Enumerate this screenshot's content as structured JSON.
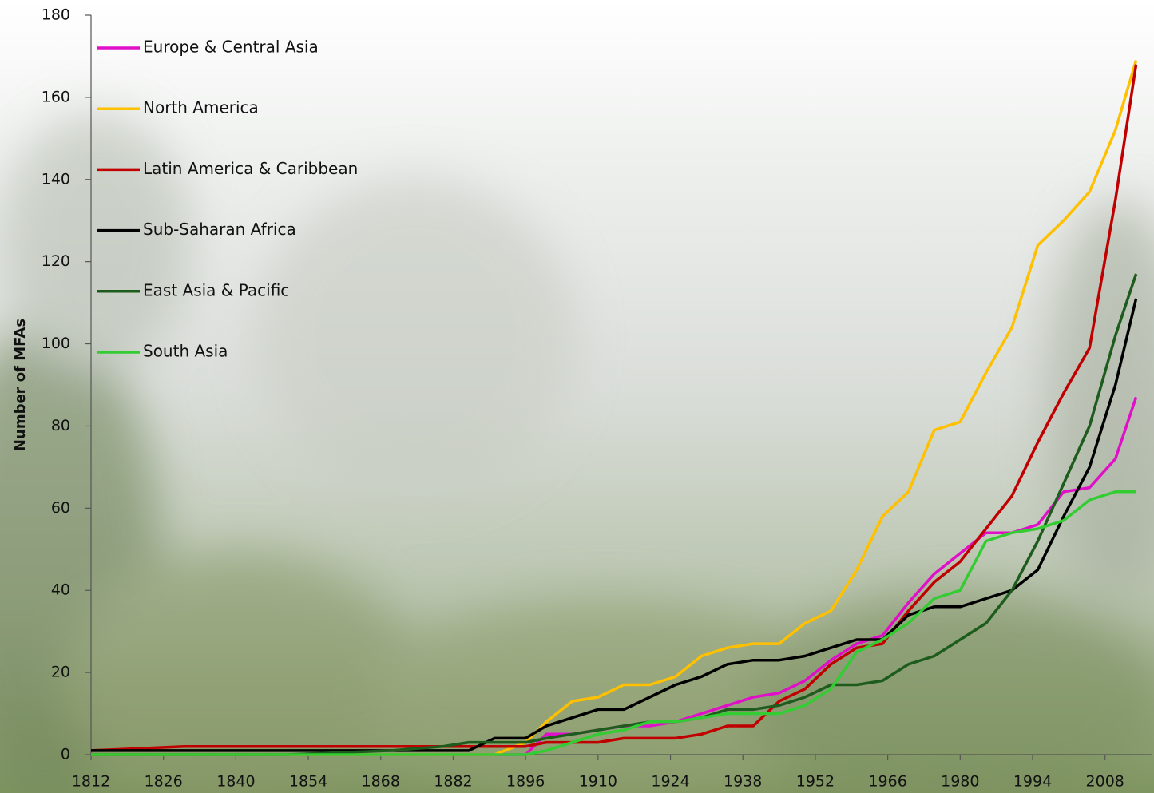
{
  "chart_data": {
    "type": "line",
    "y_label": "Number of MFAs",
    "x": [
      1812,
      1830,
      1850,
      1870,
      1880,
      1885,
      1890,
      1896,
      1900,
      1905,
      1910,
      1915,
      1920,
      1925,
      1930,
      1935,
      1940,
      1945,
      1950,
      1955,
      1960,
      1965,
      1970,
      1975,
      1980,
      1985,
      1990,
      1995,
      2000,
      2005,
      2010,
      2014
    ],
    "series": [
      {
        "name": "Europe & Central Asia",
        "color": "#e010c8",
        "values": [
          0,
          0,
          0,
          0,
          0,
          0,
          0,
          0,
          5,
          5,
          6,
          7,
          7,
          8,
          10,
          12,
          14,
          15,
          18,
          23,
          27,
          29,
          37,
          44,
          49,
          54,
          54,
          56,
          64,
          65,
          72,
          87
        ]
      },
      {
        "name": "North America",
        "color": "#ffc000",
        "values": [
          0,
          0,
          0,
          0,
          0,
          0,
          0,
          3,
          8,
          13,
          14,
          17,
          17,
          19,
          24,
          26,
          27,
          27,
          32,
          35,
          45,
          58,
          64,
          79,
          81,
          93,
          104,
          124,
          130,
          137,
          152,
          169
        ]
      },
      {
        "name": "Latin America & Caribbean",
        "color": "#c00000",
        "values": [
          1,
          2,
          2,
          2,
          2,
          2,
          2,
          2,
          3,
          3,
          3,
          4,
          4,
          4,
          5,
          7,
          7,
          13,
          16,
          22,
          26,
          27,
          35,
          42,
          47,
          55,
          63,
          76,
          88,
          99,
          135,
          168
        ]
      },
      {
        "name": "Sub-Saharan Africa",
        "color": "#000000",
        "values": [
          1,
          1,
          1,
          1,
          1,
          1,
          4,
          4,
          7,
          9,
          11,
          11,
          14,
          17,
          19,
          22,
          23,
          23,
          24,
          26,
          28,
          28,
          34,
          36,
          36,
          38,
          40,
          45,
          58,
          70,
          90,
          111
        ]
      },
      {
        "name": "East Asia & Pacific",
        "color": "#1e5c1e",
        "values": [
          0,
          0,
          0,
          1,
          2,
          3,
          3,
          3,
          4,
          5,
          6,
          7,
          8,
          8,
          9,
          11,
          11,
          12,
          14,
          17,
          17,
          18,
          22,
          24,
          28,
          32,
          40,
          52,
          66,
          80,
          102,
          117
        ]
      },
      {
        "name": "South Asia",
        "color": "#33cc33",
        "values": [
          0,
          0,
          0,
          0,
          0,
          0,
          0,
          0,
          1,
          3,
          5,
          6,
          8,
          8,
          9,
          10,
          10,
          10,
          12,
          16,
          25,
          28,
          32,
          38,
          40,
          52,
          54,
          55,
          57,
          62,
          64,
          64
        ]
      }
    ],
    "xlim": [
      1812,
      2017
    ],
    "xticks": [
      1812,
      1826,
      1840,
      1854,
      1868,
      1882,
      1896,
      1910,
      1924,
      1938,
      1952,
      1966,
      1980,
      1994,
      2008
    ],
    "ylim": [
      0,
      180
    ],
    "yticks": [
      0,
      20,
      40,
      60,
      80,
      100,
      120,
      140,
      160,
      180
    ],
    "grid": false,
    "legend": "top-left"
  }
}
